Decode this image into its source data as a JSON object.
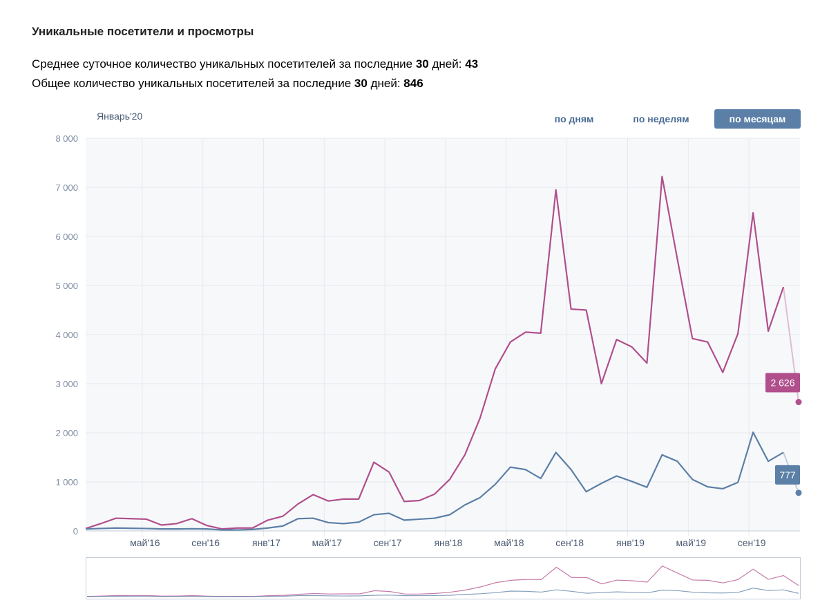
{
  "header": {
    "title": "Уникальные посетители и просмотры",
    "stat1_prefix": "Среднее суточное количество уникальных посетителей за последние ",
    "stat1_days": "30",
    "stat1_mid": " дней: ",
    "stat1_value": "43",
    "stat2_prefix": "Общее количество уникальных посетителей за последние ",
    "stat2_days": "30",
    "stat2_mid": " дней: ",
    "stat2_value": "846"
  },
  "period_label": "Январь'20",
  "tabs": [
    {
      "label": "по дням",
      "active": false
    },
    {
      "label": "по неделям",
      "active": false
    },
    {
      "label": "по месяцам",
      "active": true
    }
  ],
  "colors": {
    "views": "#b04f8c",
    "visitors": "#5b7fa6",
    "grid": "#e6e9ef",
    "plot_bg": "#f7f8fa"
  },
  "chart_data": {
    "type": "line",
    "ylim": [
      0,
      8000
    ],
    "yticks": [
      "8 000",
      "7 000",
      "6 000",
      "5 000",
      "4 000",
      "3 000",
      "2 000",
      "1 000",
      "0"
    ],
    "xticks": [
      {
        "label": "май'16",
        "index": 4
      },
      {
        "label": "сен'16",
        "index": 8
      },
      {
        "label": "янв'17",
        "index": 12
      },
      {
        "label": "май'17",
        "index": 16
      },
      {
        "label": "сен'17",
        "index": 20
      },
      {
        "label": "янв'18",
        "index": 24
      },
      {
        "label": "май'18",
        "index": 28
      },
      {
        "label": "сен'18",
        "index": 32
      },
      {
        "label": "янв'19",
        "index": 36
      },
      {
        "label": "май'19",
        "index": 40
      },
      {
        "label": "сен'19",
        "index": 44
      }
    ],
    "series": [
      {
        "key": "views",
        "values": [
          50,
          150,
          260,
          250,
          240,
          120,
          150,
          250,
          110,
          40,
          60,
          60,
          220,
          300,
          550,
          740,
          610,
          650,
          650,
          1400,
          1200,
          600,
          620,
          750,
          1050,
          1550,
          2300,
          3300,
          3850,
          4050,
          4030,
          6950,
          4520,
          4500,
          3000,
          3900,
          3750,
          3420,
          7220,
          5550,
          3920,
          3850,
          3230,
          4020,
          6480,
          4070,
          4970,
          2626
        ],
        "last_label": "2 626"
      },
      {
        "key": "visitors",
        "values": [
          40,
          50,
          60,
          55,
          50,
          40,
          40,
          45,
          40,
          20,
          20,
          30,
          60,
          100,
          250,
          260,
          170,
          150,
          180,
          330,
          360,
          220,
          240,
          260,
          330,
          530,
          680,
          950,
          1300,
          1250,
          1070,
          1600,
          1250,
          800,
          970,
          1120,
          1010,
          890,
          1550,
          1420,
          1050,
          900,
          860,
          990,
          2010,
          1420,
          1600,
          777
        ],
        "last_label": "777"
      }
    ]
  }
}
